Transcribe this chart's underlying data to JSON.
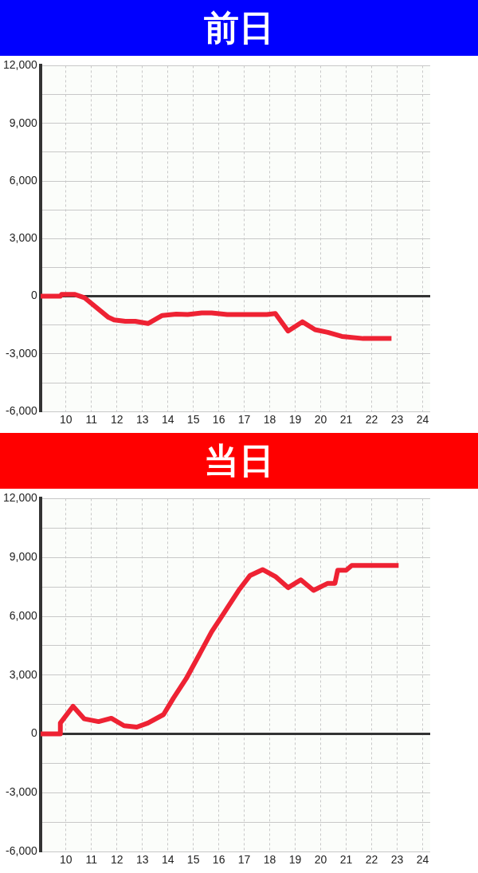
{
  "chart_data": [
    {
      "type": "line",
      "title": "前日",
      "x": [
        9.0,
        9.78,
        9.83,
        10.33,
        10.72,
        11.67,
        11.89,
        12.33,
        12.72,
        13.22,
        13.78,
        14.33,
        14.78,
        15.33,
        15.72,
        16.33,
        17.89,
        18.22,
        18.72,
        19.28,
        19.78,
        20.28,
        20.83,
        21.67,
        22.78
      ],
      "series": [
        {
          "color": "#ee2233",
          "values": [
            0,
            0,
            100,
            100,
            -70,
            -1100,
            -1230,
            -1300,
            -1300,
            -1420,
            -1000,
            -930,
            -950,
            -870,
            -870,
            -950,
            -950,
            -900,
            -1810,
            -1330,
            -1740,
            -1880,
            -2090,
            -2200,
            -2200
          ]
        }
      ],
      "xlim": [
        9,
        24.3
      ],
      "xticks": [
        10,
        11,
        12,
        13,
        14,
        15,
        16,
        17,
        18,
        19,
        20,
        21,
        22,
        23,
        24
      ],
      "ylim": [
        -6000,
        12000
      ],
      "yticks": [
        {
          "value": -6000,
          "label": "-6,000"
        },
        {
          "value": -4500,
          "label": null
        },
        {
          "value": -3000,
          "label": "-3,000"
        },
        {
          "value": -1500,
          "label": null
        },
        0,
        {
          "value": 1500,
          "label": null
        },
        {
          "value": 3000,
          "label": "3,000"
        },
        {
          "value": 4500,
          "label": null
        },
        {
          "value": 6000,
          "label": "6,000"
        },
        {
          "value": 7500,
          "label": null
        },
        {
          "value": 9000,
          "label": "9,000"
        },
        {
          "value": 10500,
          "label": null
        },
        {
          "value": 12000,
          "label": "12,000"
        }
      ],
      "ref_lines": [
        {
          "axis": "y",
          "value": 0,
          "color": "#333333"
        }
      ],
      "grid": true,
      "legend": false,
      "marker": "none",
      "line_style": "solid"
    },
    {
      "type": "line",
      "title": "当日",
      "x": [
        9.0,
        9.78,
        9.78,
        10.28,
        10.72,
        11.28,
        11.78,
        12.28,
        12.78,
        13.22,
        13.83,
        14.22,
        14.72,
        15.22,
        15.72,
        16.22,
        16.78,
        17.22,
        17.72,
        18.22,
        18.72,
        19.22,
        19.72,
        20.28,
        20.56,
        20.67,
        21.0,
        21.22,
        23.06
      ],
      "series": [
        {
          "color": "#ee2233",
          "values": [
            0,
            0,
            560,
            1410,
            770,
            630,
            800,
            420,
            350,
            560,
            990,
            1830,
            2820,
            4010,
            5210,
            6200,
            7320,
            8070,
            8380,
            8030,
            7460,
            7860,
            7320,
            7680,
            7680,
            8350,
            8350,
            8590,
            8590
          ]
        }
      ],
      "xlim": [
        9,
        24.3
      ],
      "xticks": [
        10,
        11,
        12,
        13,
        14,
        15,
        16,
        17,
        18,
        19,
        20,
        21,
        22,
        23,
        24
      ],
      "ylim": [
        -6000,
        12000
      ],
      "yticks": [
        {
          "value": -6000,
          "label": "-6,000"
        },
        {
          "value": -4500,
          "label": null
        },
        {
          "value": -3000,
          "label": "-3,000"
        },
        {
          "value": -1500,
          "label": null
        },
        0,
        {
          "value": 1500,
          "label": null
        },
        {
          "value": 3000,
          "label": "3,000"
        },
        {
          "value": 4500,
          "label": null
        },
        {
          "value": 6000,
          "label": "6,000"
        },
        {
          "value": 7500,
          "label": null
        },
        {
          "value": 9000,
          "label": "9,000"
        },
        {
          "value": 10500,
          "label": null
        },
        {
          "value": 12000,
          "label": "12,000"
        }
      ],
      "ref_lines": [
        {
          "axis": "y",
          "value": 0,
          "color": "#333333"
        }
      ],
      "grid": true,
      "legend": false,
      "marker": "none",
      "line_style": "solid"
    }
  ]
}
